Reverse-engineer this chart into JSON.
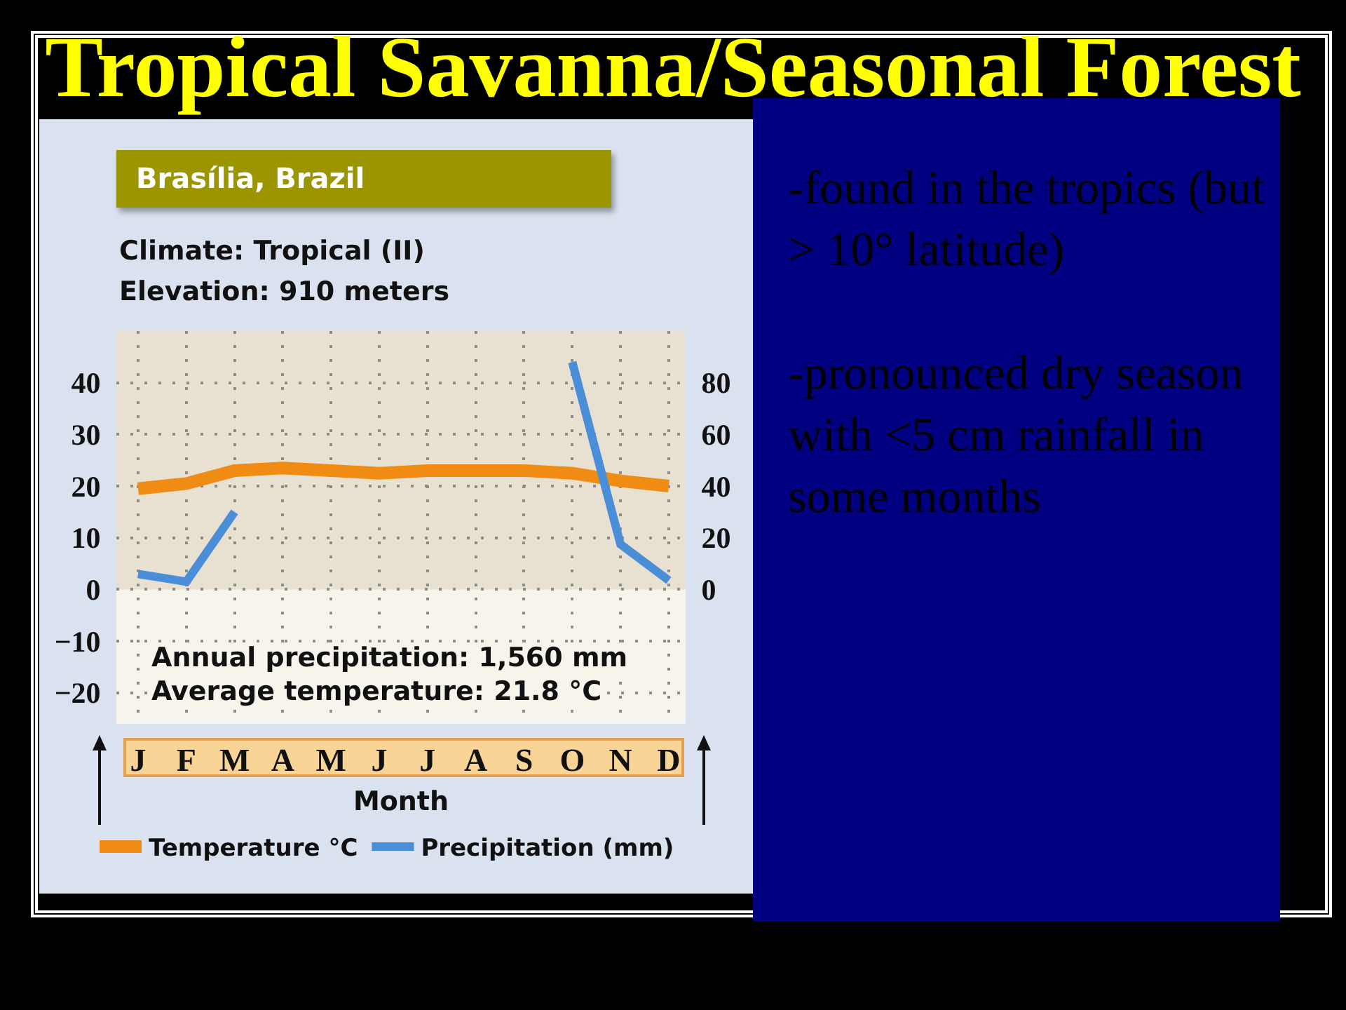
{
  "chart_data": {
    "type": "line",
    "title": "Tropical Savanna/Seasonal Forest",
    "subtitle": "Brasília, Brazil",
    "xlabel": "Month",
    "annotations": [
      "Climate: Tropical (II)",
      "Elevation: 910 meters",
      "Annual precipitation: 1,560 mm",
      "Average temperature: 21.8 °C",
      "-found in the tropics (but > 10° latitude)",
      "-pronounced dry season with <5 cm rainfall in some months"
    ],
    "categories": [
      "J",
      "F",
      "M",
      "A",
      "M",
      "J",
      "J",
      "A",
      "S",
      "O",
      "N",
      "D"
    ],
    "ylim": [
      -26,
      50
    ],
    "yticks": [
      -20,
      -10,
      0,
      10,
      20,
      30,
      40
    ],
    "y2lim": [
      -52,
      100
    ],
    "y2ticks": [
      0,
      20,
      40,
      60,
      80
    ],
    "grid": true,
    "legend": "bottom",
    "bands": [
      {
        "axis": "y",
        "from": 0,
        "to": 50,
        "color": "#e8e1d2"
      }
    ],
    "series": [
      {
        "name": "Temperature °C",
        "color": "#f08c14",
        "values": [
          19.5,
          20.5,
          23,
          23.5,
          23,
          22.5,
          23,
          23,
          23,
          22.5,
          21,
          20
        ]
      },
      {
        "name": "Precipitation (mm)",
        "color": "#4a8ed8",
        "axis": "y2",
        "values": [
          6,
          3,
          30,
          null,
          null,
          null,
          null,
          null,
          null,
          88,
          17.5,
          3.5
        ]
      }
    ]
  }
}
